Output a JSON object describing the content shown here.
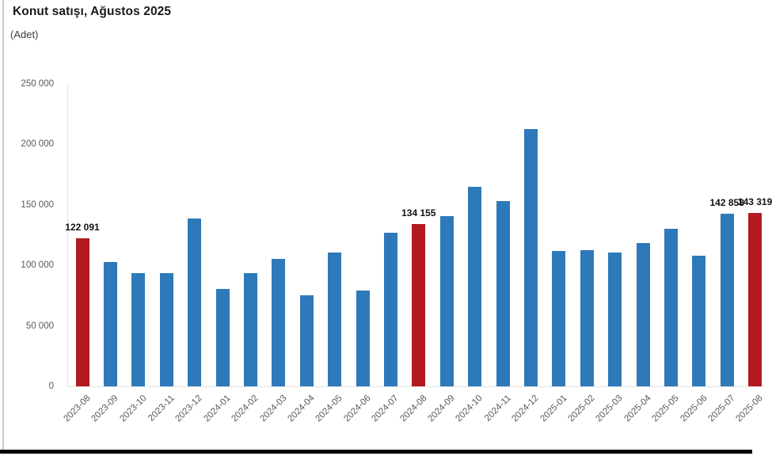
{
  "page": {
    "title": "Konut satışı, Ağustos 2025",
    "subtitle": "(Adet)"
  },
  "chart_data": {
    "type": "bar",
    "title": "Konut satışı, Ağustos 2025",
    "unit_label": "(Adet)",
    "categories": [
      "2023-08",
      "2023-09",
      "2023-10",
      "2023-11",
      "2023-12",
      "2024-01",
      "2024-02",
      "2024-03",
      "2024-04",
      "2024-05",
      "2024-06",
      "2024-07",
      "2024-08",
      "2024-09",
      "2024-10",
      "2024-11",
      "2024-12",
      "2025-01",
      "2025-02",
      "2025-03",
      "2025-04",
      "2025-05",
      "2025-06",
      "2025-07",
      "2025-08"
    ],
    "values": [
      122091,
      102656,
      93761,
      93514,
      138577,
      80308,
      93902,
      105476,
      75569,
      110588,
      79313,
      127088,
      134155,
      140919,
      165138,
      153373,
      212637,
      112173,
      112818,
      110795,
      118359,
      130025,
      107723,
      142858,
      143319
    ],
    "highlighted_categories": [
      "2023-08",
      "2024-08",
      "2025-08"
    ],
    "value_labels": {
      "2023-08": "122 091",
      "2024-08": "134 155",
      "2025-07": "142 858",
      "2025-08": "143 319"
    },
    "ytick_values": [
      0,
      50000,
      100000,
      150000,
      200000,
      250000
    ],
    "ytick_labels": [
      "0",
      "50 000",
      "100 000",
      "150 000",
      "200 000",
      "250 000"
    ],
    "ylim": [
      0,
      250000
    ],
    "xlabel": "",
    "ylabel": "",
    "grid": false,
    "legend": false,
    "colors": {
      "bar_default": "#2E79B9",
      "bar_highlight": "#B11A21",
      "axis_line": "#E2E2E2",
      "tick_text": "#595959",
      "value_label_text": "#111111",
      "bottom_rule": "#000000"
    }
  }
}
